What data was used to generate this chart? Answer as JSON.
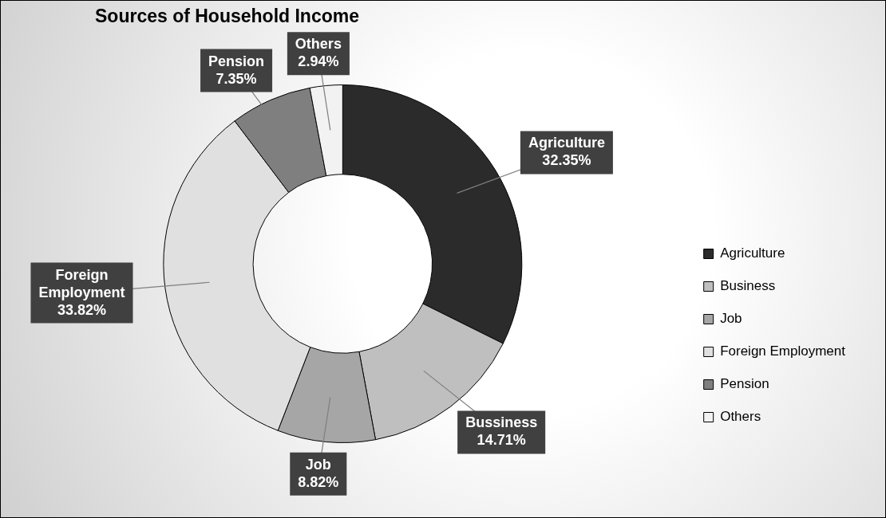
{
  "chart_data": {
    "type": "donut",
    "title": "Sources of Household Income",
    "categories": [
      "Agriculture",
      "Business",
      "Job",
      "Foreign Employment",
      "Pension",
      "Others"
    ],
    "values": [
      32.35,
      14.71,
      8.82,
      33.82,
      7.35,
      2.94
    ],
    "colors": [
      "#2b2b2b",
      "#bfbfbf",
      "#a6a6a6",
      "#e0e0e0",
      "#7f7f7f",
      "#f2f2f2"
    ],
    "value_labels": [
      "Agriculture\n32.35%",
      "Bussiness\n14.71%",
      "Job\n8.82%",
      "Foreign\nEmployment\n33.82%",
      "Pension\n7.35%",
      "Others\n2.94%"
    ],
    "legend": "right"
  }
}
